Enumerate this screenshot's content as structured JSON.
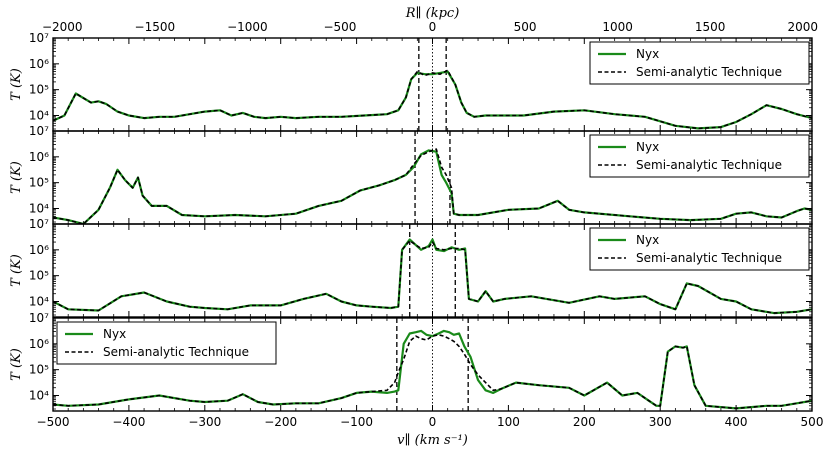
{
  "figure": {
    "top_axis_label": "R∥ (kpc)",
    "bottom_axis_label": "v∥ (km s⁻¹)",
    "y_axis_label": "T (K)"
  },
  "chart_data": {
    "type": "line",
    "x_range": [
      -500,
      500
    ],
    "x_ticks": [
      -500,
      -400,
      -300,
      -200,
      -100,
      0,
      100,
      200,
      300,
      400,
      500
    ],
    "top_x_range": [
      -2050,
      2050
    ],
    "top_ticks": [
      -2000,
      -1500,
      -1000,
      -500,
      0,
      500,
      1000,
      1500,
      2000
    ],
    "y_scale": "log",
    "y_range_log10": [
      3.4,
      7
    ],
    "y_ticks": [
      "10⁴",
      "10⁵",
      "10⁶",
      "10⁷"
    ],
    "y_tick_values_log10": [
      4,
      5,
      6,
      7
    ],
    "colors": {
      "nyx": "#1a8a1a",
      "semi": "#000000"
    },
    "panels": [
      {
        "legend": {
          "position": "top-right",
          "entries": [
            "Nyx",
            "Semi-analytic Technique"
          ]
        },
        "dashed_vlines": [
          -18,
          18
        ],
        "center_line": 0,
        "x": [
          -500,
          -485,
          -470,
          -450,
          -440,
          -430,
          -415,
          -400,
          -380,
          -360,
          -340,
          -300,
          -280,
          -265,
          -250,
          -235,
          -220,
          -200,
          -180,
          -150,
          -120,
          -90,
          -60,
          -45,
          -35,
          -28,
          -20,
          -10,
          0,
          10,
          20,
          30,
          38,
          45,
          55,
          70,
          90,
          120,
          160,
          200,
          240,
          280,
          320,
          350,
          380,
          400,
          420,
          440,
          460,
          480,
          500
        ],
        "nyx_log10T": [
          3.8,
          4.0,
          4.85,
          4.5,
          4.55,
          4.45,
          4.15,
          4.0,
          3.9,
          3.95,
          3.95,
          4.15,
          4.2,
          4.0,
          4.1,
          3.95,
          3.9,
          3.95,
          3.9,
          3.95,
          3.95,
          4.0,
          4.05,
          4.2,
          4.7,
          5.4,
          5.65,
          5.6,
          5.6,
          5.65,
          5.7,
          5.2,
          4.5,
          4.1,
          3.95,
          4.0,
          4.0,
          4.0,
          4.15,
          4.2,
          4.05,
          3.95,
          3.6,
          3.5,
          3.55,
          3.75,
          4.05,
          4.4,
          4.25,
          4.05,
          3.9
        ],
        "semi_log10T": [
          3.8,
          4.0,
          4.85,
          4.5,
          4.55,
          4.45,
          4.15,
          4.0,
          3.9,
          3.95,
          3.95,
          4.15,
          4.2,
          4.0,
          4.1,
          3.95,
          3.9,
          3.95,
          3.9,
          3.95,
          3.95,
          4.0,
          4.05,
          4.2,
          4.7,
          5.4,
          5.7,
          5.55,
          5.65,
          5.6,
          5.75,
          5.2,
          4.5,
          4.1,
          3.95,
          4.0,
          4.0,
          4.0,
          4.15,
          4.2,
          4.05,
          3.95,
          3.6,
          3.5,
          3.55,
          3.75,
          4.05,
          4.4,
          4.25,
          4.05,
          3.9
        ]
      },
      {
        "legend": {
          "position": "top-right",
          "entries": [
            "Nyx",
            "Semi-analytic Technique"
          ]
        },
        "dashed_vlines": [
          -23,
          23
        ],
        "center_line": 0,
        "x": [
          -500,
          -480,
          -460,
          -440,
          -425,
          -415,
          -405,
          -395,
          -388,
          -382,
          -370,
          -350,
          -330,
          -300,
          -260,
          -220,
          -180,
          -150,
          -120,
          -95,
          -70,
          -50,
          -35,
          -25,
          -15,
          -5,
          5,
          12,
          18,
          25,
          28,
          35,
          60,
          100,
          140,
          165,
          180,
          200,
          260,
          300,
          340,
          380,
          400,
          420,
          440,
          460,
          480,
          490,
          500
        ],
        "nyx_log10T": [
          3.65,
          3.55,
          3.4,
          3.95,
          4.8,
          5.5,
          5.1,
          4.8,
          5.2,
          4.5,
          4.1,
          4.1,
          3.75,
          3.7,
          3.75,
          3.7,
          3.8,
          4.1,
          4.3,
          4.7,
          4.9,
          5.1,
          5.3,
          5.6,
          6.1,
          6.25,
          6.2,
          5.3,
          5.0,
          4.6,
          3.8,
          3.75,
          3.75,
          3.95,
          4.0,
          4.3,
          3.95,
          3.85,
          3.7,
          3.6,
          3.55,
          3.6,
          3.8,
          3.85,
          3.7,
          3.65,
          3.9,
          4.0,
          3.95
        ],
        "semi_log10T": [
          3.65,
          3.55,
          3.4,
          3.95,
          4.8,
          5.5,
          5.1,
          4.8,
          5.2,
          4.5,
          4.1,
          4.1,
          3.75,
          3.7,
          3.75,
          3.7,
          3.8,
          4.1,
          4.3,
          4.7,
          4.9,
          5.1,
          5.3,
          5.7,
          6.05,
          6.2,
          6.3,
          5.6,
          5.3,
          4.8,
          3.8,
          3.75,
          3.75,
          3.95,
          4.0,
          4.3,
          3.95,
          3.85,
          3.7,
          3.6,
          3.55,
          3.6,
          3.8,
          3.85,
          3.7,
          3.65,
          3.9,
          4.0,
          3.95
        ]
      },
      {
        "legend": {
          "position": "top-right",
          "entries": [
            "Nyx",
            "Semi-analytic Technique"
          ]
        },
        "dashed_vlines": [
          -30,
          30
        ],
        "center_line": 0,
        "x": [
          -500,
          -480,
          -440,
          -410,
          -380,
          -350,
          -320,
          -300,
          -270,
          -240,
          -200,
          -170,
          -140,
          -120,
          -100,
          -80,
          -55,
          -45,
          -40,
          -30,
          -15,
          -5,
          0,
          5,
          15,
          25,
          35,
          43,
          48,
          60,
          70,
          80,
          95,
          130,
          180,
          220,
          240,
          280,
          300,
          320,
          335,
          350,
          380,
          400,
          420,
          450,
          480,
          500
        ],
        "nyx_log10T": [
          4.0,
          3.7,
          3.65,
          4.2,
          4.35,
          4.0,
          3.8,
          3.75,
          3.7,
          3.85,
          3.85,
          4.1,
          4.3,
          4.0,
          3.85,
          3.8,
          3.75,
          3.8,
          6.0,
          6.4,
          6.0,
          6.15,
          6.4,
          6.0,
          5.95,
          6.1,
          6.0,
          6.05,
          4.1,
          4.0,
          4.4,
          4.0,
          4.1,
          4.2,
          3.95,
          4.2,
          4.1,
          4.2,
          3.9,
          3.7,
          4.7,
          4.6,
          4.1,
          4.0,
          3.7,
          3.55,
          3.6,
          3.7
        ],
        "semi_log10T": [
          4.0,
          3.7,
          3.65,
          4.2,
          4.35,
          4.0,
          3.8,
          3.75,
          3.7,
          3.85,
          3.85,
          4.1,
          4.3,
          4.0,
          3.85,
          3.8,
          3.75,
          3.8,
          6.0,
          6.35,
          6.05,
          6.1,
          6.3,
          6.05,
          6.0,
          6.05,
          6.05,
          6.0,
          4.1,
          4.0,
          4.4,
          4.0,
          4.1,
          4.2,
          3.95,
          4.2,
          4.1,
          4.2,
          3.9,
          3.7,
          4.7,
          4.6,
          4.1,
          4.0,
          3.7,
          3.55,
          3.6,
          3.7
        ]
      },
      {
        "legend": {
          "position": "top-left",
          "entries": [
            "Nyx",
            "Semi-analytic Technique"
          ]
        },
        "dashed_vlines": [
          -47,
          47
        ],
        "center_line": 0,
        "x": [
          -500,
          -480,
          -440,
          -400,
          -360,
          -320,
          -300,
          -270,
          -250,
          -230,
          -210,
          -180,
          -150,
          -120,
          -100,
          -80,
          -60,
          -50,
          -45,
          -38,
          -30,
          -22,
          -15,
          -8,
          0,
          8,
          15,
          22,
          28,
          35,
          42,
          50,
          60,
          70,
          80,
          90,
          110,
          140,
          180,
          200,
          230,
          250,
          270,
          285,
          295,
          300,
          310,
          320,
          330,
          335,
          345,
          360,
          400,
          440,
          460,
          480,
          500
        ],
        "nyx_log10T": [
          3.65,
          3.6,
          3.65,
          3.85,
          4.0,
          3.8,
          3.75,
          3.8,
          4.05,
          3.75,
          3.65,
          3.7,
          3.7,
          3.9,
          4.1,
          4.15,
          4.1,
          4.15,
          4.2,
          6.0,
          6.4,
          6.45,
          6.5,
          6.35,
          6.3,
          6.4,
          6.5,
          6.45,
          6.35,
          6.4,
          5.9,
          5.5,
          4.6,
          4.2,
          4.1,
          4.25,
          4.5,
          4.4,
          4.3,
          4.0,
          4.5,
          4.0,
          4.1,
          3.8,
          3.6,
          3.6,
          5.7,
          5.9,
          5.85,
          5.9,
          4.4,
          3.6,
          3.5,
          3.6,
          3.6,
          3.7,
          3.8
        ],
        "semi_log10T": [
          3.65,
          3.6,
          3.65,
          3.85,
          4.0,
          3.8,
          3.75,
          3.8,
          4.05,
          3.75,
          3.65,
          3.7,
          3.7,
          3.9,
          4.1,
          4.15,
          4.2,
          4.5,
          4.9,
          5.4,
          6.1,
          6.3,
          6.2,
          6.15,
          6.3,
          6.35,
          6.3,
          6.2,
          6.1,
          5.9,
          5.6,
          5.2,
          4.8,
          4.5,
          4.2,
          4.25,
          4.5,
          4.4,
          4.3,
          4.0,
          4.5,
          4.0,
          4.1,
          3.8,
          3.6,
          3.6,
          5.7,
          5.9,
          5.85,
          5.9,
          4.4,
          3.6,
          3.5,
          3.6,
          3.6,
          3.7,
          3.8
        ]
      }
    ]
  }
}
